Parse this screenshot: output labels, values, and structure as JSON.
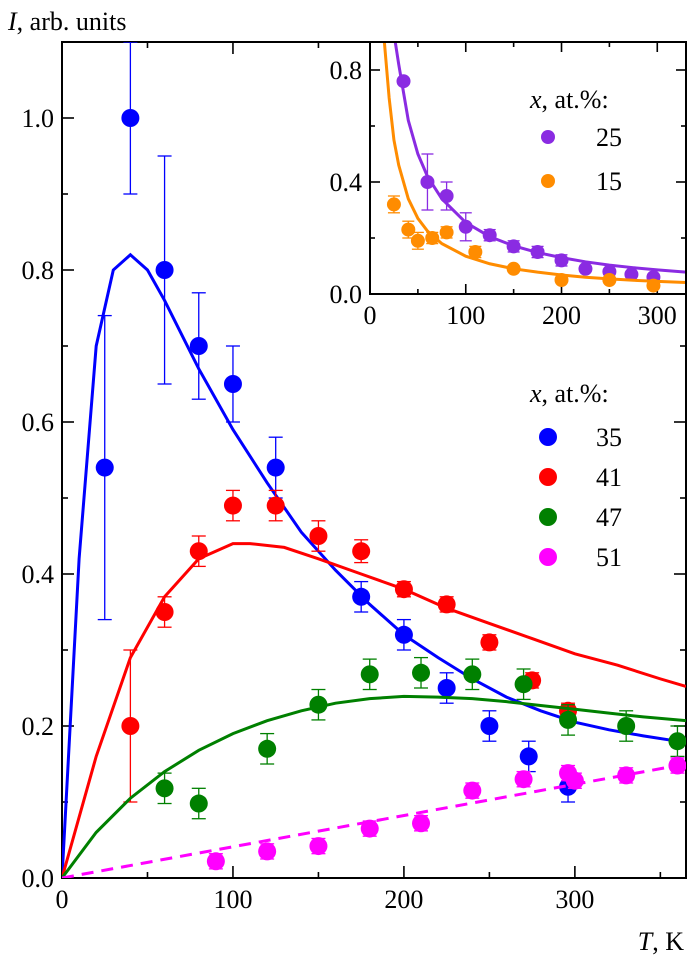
{
  "chart_data": [
    {
      "type": "scatter",
      "ylabel_symbol": "I",
      "ylabel_text": ", arb. units",
      "xlabel_symbol": "T",
      "xlabel_text": ", K",
      "xlim": [
        0,
        365
      ],
      "ylim": [
        0,
        1.1
      ],
      "xticks": [
        0,
        100,
        200,
        300
      ],
      "yticks": [
        0.0,
        0.2,
        0.4,
        0.6,
        0.8,
        1.0
      ],
      "xtick_labels": [
        "0",
        "100",
        "200",
        "300"
      ],
      "ytick_labels": [
        "0.0",
        "0.2",
        "0.4",
        "0.6",
        "0.8",
        "1.0"
      ],
      "legend_title_symbol": "x",
      "legend_title_text": ", at.%:",
      "legend_position": "right",
      "series": [
        {
          "name": "35",
          "color": "#0000ff",
          "points": [
            [
              25,
              0.54,
              0.2
            ],
            [
              40,
              1.0,
              0.1
            ],
            [
              60,
              0.8,
              0.15
            ],
            [
              80,
              0.7,
              0.07
            ],
            [
              100,
              0.65,
              0.05
            ],
            [
              125,
              0.54,
              0.04
            ],
            [
              175,
              0.37,
              0.02
            ],
            [
              200,
              0.32,
              0.02
            ],
            [
              225,
              0.25,
              0.02
            ],
            [
              250,
              0.2,
              0.02
            ],
            [
              273,
              0.16,
              0.02
            ],
            [
              296,
              0.12,
              0.02
            ]
          ],
          "fit": [
            [
              0,
              0
            ],
            [
              10,
              0.42
            ],
            [
              20,
              0.7
            ],
            [
              30,
              0.8
            ],
            [
              40,
              0.82
            ],
            [
              50,
              0.8
            ],
            [
              60,
              0.76
            ],
            [
              80,
              0.67
            ],
            [
              100,
              0.59
            ],
            [
              120,
              0.52
            ],
            [
              140,
              0.455
            ],
            [
              160,
              0.405
            ],
            [
              180,
              0.36
            ],
            [
              200,
              0.32
            ],
            [
              220,
              0.29
            ],
            [
              240,
              0.262
            ],
            [
              260,
              0.238
            ],
            [
              280,
              0.22
            ],
            [
              300,
              0.205
            ],
            [
              320,
              0.195
            ],
            [
              340,
              0.187
            ],
            [
              360,
              0.18
            ]
          ],
          "fit_style": "solid"
        },
        {
          "name": "41",
          "color": "#ff0000",
          "points": [
            [
              40,
              0.2,
              0.1
            ],
            [
              60,
              0.35,
              0.02
            ],
            [
              80,
              0.43,
              0.02
            ],
            [
              100,
              0.49,
              0.02
            ],
            [
              125,
              0.49,
              0.02
            ],
            [
              150,
              0.45,
              0.02
            ],
            [
              175,
              0.43,
              0.015
            ],
            [
              200,
              0.38,
              0.01
            ],
            [
              225,
              0.36,
              0.01
            ],
            [
              250,
              0.31,
              0.01
            ],
            [
              275,
              0.26,
              0.01
            ],
            [
              296,
              0.22,
              0.01
            ]
          ],
          "fit": [
            [
              0,
              0
            ],
            [
              20,
              0.16
            ],
            [
              40,
              0.29
            ],
            [
              60,
              0.37
            ],
            [
              80,
              0.42
            ],
            [
              100,
              0.44
            ],
            [
              110,
              0.44
            ],
            [
              130,
              0.435
            ],
            [
              150,
              0.42
            ],
            [
              175,
              0.4
            ],
            [
              200,
              0.38
            ],
            [
              225,
              0.355
            ],
            [
              250,
              0.335
            ],
            [
              275,
              0.315
            ],
            [
              300,
              0.295
            ],
            [
              325,
              0.28
            ],
            [
              350,
              0.262
            ],
            [
              365,
              0.252
            ]
          ],
          "fit_style": "solid"
        },
        {
          "name": "47",
          "color": "#008000",
          "points": [
            [
              60,
              0.118,
              0.02
            ],
            [
              80,
              0.098,
              0.02
            ],
            [
              120,
              0.17,
              0.02
            ],
            [
              150,
              0.228,
              0.02
            ],
            [
              180,
              0.268,
              0.02
            ],
            [
              210,
              0.27,
              0.02
            ],
            [
              240,
              0.268,
              0.02
            ],
            [
              270,
              0.255,
              0.02
            ],
            [
              296,
              0.208,
              0.02
            ],
            [
              330,
              0.2,
              0.02
            ],
            [
              360,
              0.18,
              0.02
            ]
          ],
          "fit": [
            [
              0,
              0
            ],
            [
              20,
              0.06
            ],
            [
              40,
              0.105
            ],
            [
              60,
              0.14
            ],
            [
              80,
              0.168
            ],
            [
              100,
              0.19
            ],
            [
              120,
              0.207
            ],
            [
              140,
              0.22
            ],
            [
              160,
              0.23
            ],
            [
              180,
              0.236
            ],
            [
              200,
              0.239
            ],
            [
              220,
              0.238
            ],
            [
              240,
              0.236
            ],
            [
              260,
              0.232
            ],
            [
              280,
              0.227
            ],
            [
              300,
              0.222
            ],
            [
              320,
              0.217
            ],
            [
              340,
              0.212
            ],
            [
              365,
              0.207
            ]
          ],
          "fit_style": "solid"
        },
        {
          "name": "51",
          "color": "#ff00ff",
          "points": [
            [
              90,
              0.022,
              0.01
            ],
            [
              120,
              0.035,
              0.01
            ],
            [
              150,
              0.042,
              0.01
            ],
            [
              180,
              0.065,
              0.01
            ],
            [
              210,
              0.072,
              0.01
            ],
            [
              240,
              0.115,
              0.01
            ],
            [
              270,
              0.13,
              0.01
            ],
            [
              296,
              0.138,
              0.01
            ],
            [
              300,
              0.128,
              0.01
            ],
            [
              330,
              0.135,
              0.01
            ],
            [
              360,
              0.148,
              0.01
            ]
          ],
          "fit": [
            [
              0,
              0
            ],
            [
              365,
              0.15
            ]
          ],
          "fit_style": "dashed"
        }
      ]
    },
    {
      "type": "scatter",
      "inset": true,
      "xlim": [
        0,
        330
      ],
      "ylim": [
        0,
        0.9
      ],
      "xticks": [
        0,
        100,
        200,
        300
      ],
      "yticks": [
        0.0,
        0.4,
        0.8
      ],
      "xtick_labels": [
        "0",
        "100",
        "200",
        "300"
      ],
      "ytick_labels": [
        "0.0",
        "0.4",
        "0.8"
      ],
      "legend_title_symbol": "x",
      "legend_title_text": ", at.%:",
      "legend_position": "top-right",
      "series": [
        {
          "name": "25",
          "color": "#8a2be2",
          "points": [
            [
              35,
              0.76,
              0.0
            ],
            [
              60,
              0.4,
              0.1
            ],
            [
              80,
              0.35,
              0.05
            ],
            [
              100,
              0.24,
              0.05
            ],
            [
              125,
              0.21,
              0.02
            ],
            [
              150,
              0.17,
              0.02
            ],
            [
              175,
              0.15,
              0.02
            ],
            [
              200,
              0.12,
              0.02
            ],
            [
              225,
              0.09,
              0.01
            ],
            [
              250,
              0.08,
              0.01
            ],
            [
              273,
              0.07,
              0.01
            ],
            [
              296,
              0.06,
              0.01
            ]
          ],
          "fit": [
            [
              25,
              0.93
            ],
            [
              30,
              0.82
            ],
            [
              40,
              0.62
            ],
            [
              50,
              0.5
            ],
            [
              60,
              0.42
            ],
            [
              75,
              0.34
            ],
            [
              100,
              0.255
            ],
            [
              125,
              0.205
            ],
            [
              150,
              0.172
            ],
            [
              175,
              0.148
            ],
            [
              200,
              0.13
            ],
            [
              225,
              0.115
            ],
            [
              250,
              0.103
            ],
            [
              275,
              0.094
            ],
            [
              300,
              0.086
            ],
            [
              330,
              0.078
            ]
          ],
          "fit_style": "solid"
        },
        {
          "name": "15",
          "color": "#ff8c00",
          "points": [
            [
              25,
              0.32,
              0.03
            ],
            [
              40,
              0.23,
              0.03
            ],
            [
              50,
              0.19,
              0.03
            ],
            [
              65,
              0.2,
              0.02
            ],
            [
              80,
              0.22,
              0.02
            ],
            [
              110,
              0.15,
              0.02
            ],
            [
              150,
              0.09,
              0.01
            ],
            [
              200,
              0.05,
              0.01
            ],
            [
              250,
              0.05,
              0.01
            ],
            [
              296,
              0.03,
              0.01
            ]
          ],
          "fit": [
            [
              15,
              0.9
            ],
            [
              20,
              0.7
            ],
            [
              25,
              0.55
            ],
            [
              30,
              0.46
            ],
            [
              40,
              0.34
            ],
            [
              50,
              0.27
            ],
            [
              60,
              0.225
            ],
            [
              75,
              0.18
            ],
            [
              100,
              0.135
            ],
            [
              125,
              0.108
            ],
            [
              150,
              0.09
            ],
            [
              175,
              0.078
            ],
            [
              200,
              0.068
            ],
            [
              225,
              0.06
            ],
            [
              250,
              0.054
            ],
            [
              275,
              0.049
            ],
            [
              300,
              0.045
            ],
            [
              330,
              0.041
            ]
          ],
          "fit_style": "solid"
        }
      ]
    }
  ]
}
